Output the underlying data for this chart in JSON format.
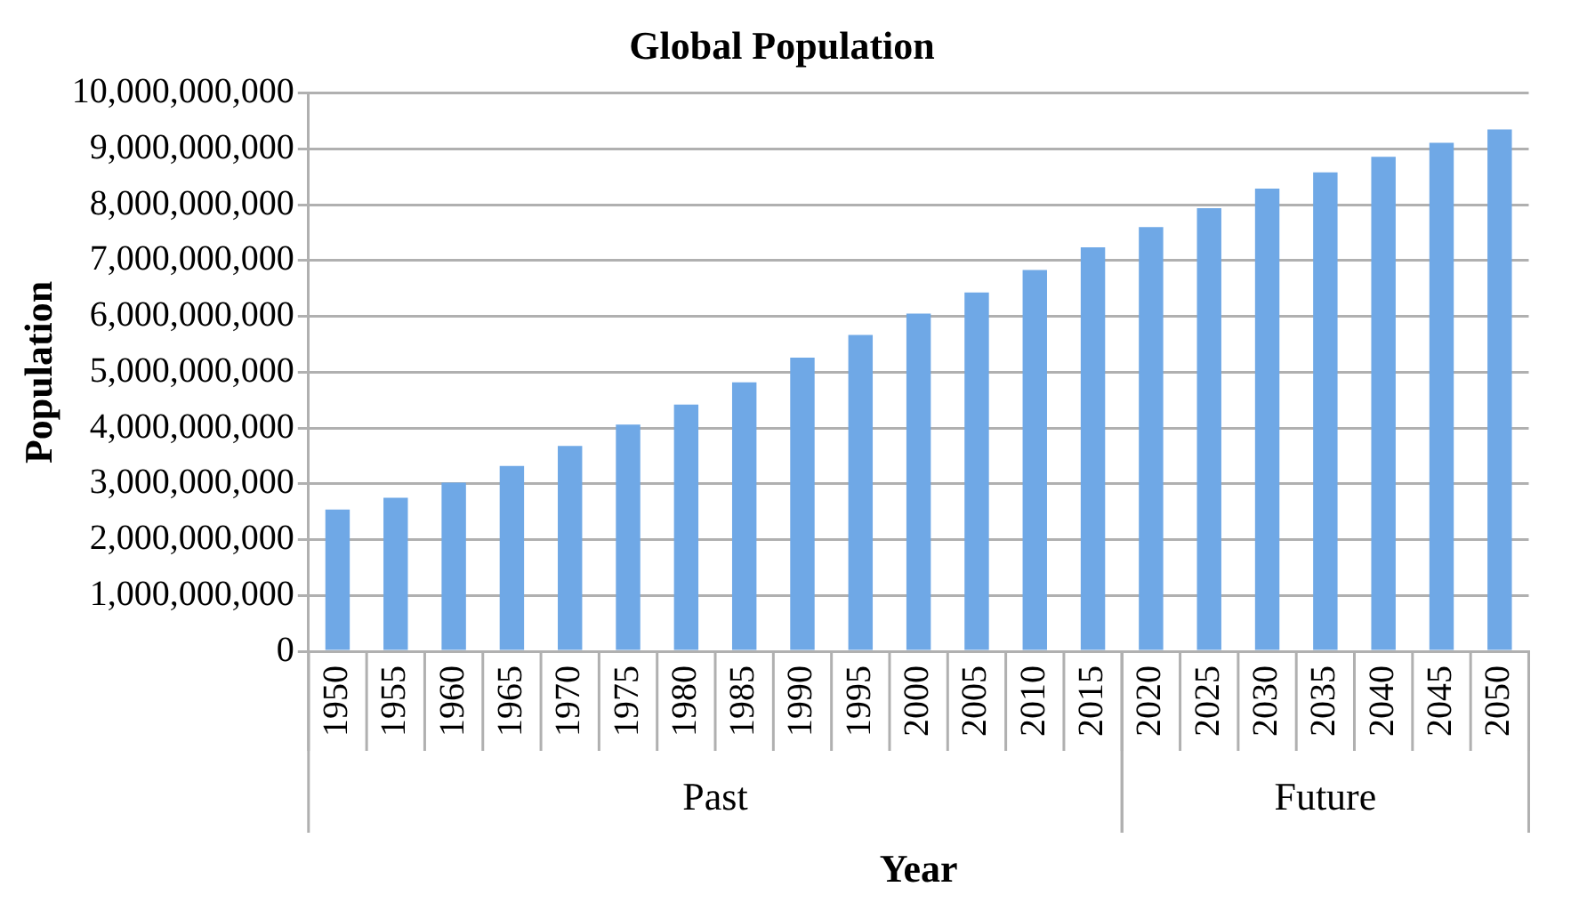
{
  "chart_data": {
    "type": "bar",
    "title": "Global Population",
    "xlabel": "Year",
    "ylabel": "Population",
    "categories": [
      "1950",
      "1955",
      "1960",
      "1965",
      "1970",
      "1975",
      "1980",
      "1985",
      "1990",
      "1995",
      "2000",
      "2005",
      "2010",
      "2015",
      "2020",
      "2025",
      "2030",
      "2035",
      "2040",
      "2045",
      "2050"
    ],
    "values": [
      2540000000,
      2750000000,
      3020000000,
      3320000000,
      3680000000,
      4060000000,
      4420000000,
      4820000000,
      5260000000,
      5670000000,
      6050000000,
      6430000000,
      6830000000,
      7240000000,
      7600000000,
      7940000000,
      8290000000,
      8580000000,
      8860000000,
      9110000000,
      9350000000
    ],
    "color": "#6fa8e6",
    "ylim": [
      0,
      10000000000
    ],
    "yticks": [
      0,
      {
        "value": 1000000000,
        "label": "1,000,000,000"
      },
      {
        "value": 2000000000,
        "label": "2,000,000,000"
      },
      {
        "value": 3000000000,
        "label": "3,000,000,000"
      },
      {
        "value": 4000000000,
        "label": "4,000,000,000"
      },
      {
        "value": 5000000000,
        "label": "5,000,000,000"
      },
      {
        "value": 6000000000,
        "label": "6,000,000,000"
      },
      {
        "value": 7000000000,
        "label": "7,000,000,000"
      },
      {
        "value": 8000000000,
        "label": "8,000,000,000"
      },
      {
        "value": 9000000000,
        "label": "9,000,000,000"
      },
      {
        "value": 10000000000,
        "label": "10,000,000,000"
      }
    ],
    "grid": "y",
    "legend": false,
    "annotations": [
      "Past",
      "Future"
    ]
  }
}
